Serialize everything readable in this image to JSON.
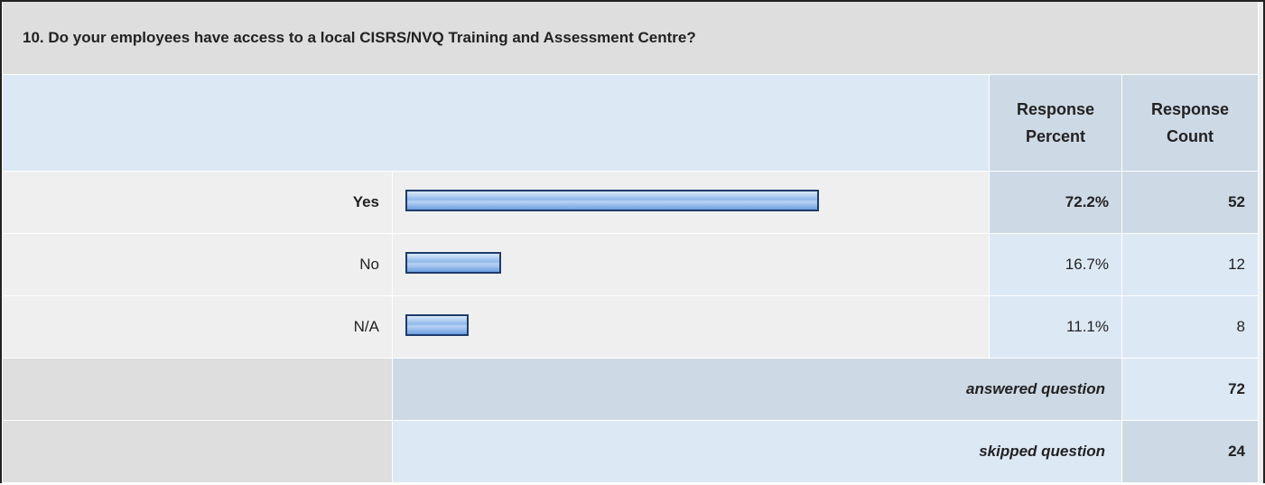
{
  "title": "10. Do your employees have access to a local CISRS/NVQ Training and Assessment Centre?",
  "header": {
    "percent": "Response Percent",
    "count": "Response Count"
  },
  "rows": [
    {
      "label": "Yes",
      "percent": 72.2,
      "percent_label": "72.2%",
      "count": 52
    },
    {
      "label": "No",
      "percent": 16.7,
      "percent_label": "16.7%",
      "count": 12
    },
    {
      "label": "N/A",
      "percent": 11.1,
      "percent_label": "11.1%",
      "count": 8
    }
  ],
  "summary": [
    {
      "label": "answered question",
      "count": 72
    },
    {
      "label": "skipped question",
      "count": 24
    }
  ]
}
